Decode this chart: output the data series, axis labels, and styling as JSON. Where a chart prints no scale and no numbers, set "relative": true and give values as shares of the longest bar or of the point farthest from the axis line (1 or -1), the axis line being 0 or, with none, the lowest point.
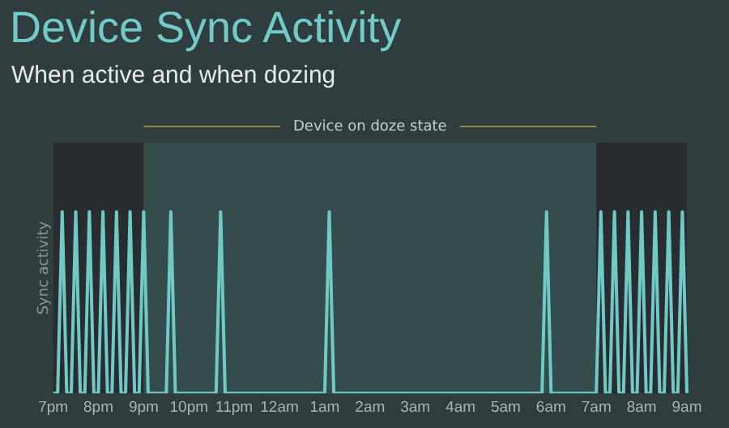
{
  "chart_data": {
    "type": "line",
    "title": "Device Sync Activity",
    "subtitle": "When active and when dozing",
    "ylabel": "Sync activity",
    "relative": true,
    "categories": [
      "7pm",
      null,
      null,
      null,
      null,
      null,
      null,
      null,
      null,
      null,
      "8pm",
      null,
      null,
      null,
      null,
      null,
      null,
      null,
      null,
      null,
      "9pm",
      null,
      null,
      null,
      null,
      null,
      null,
      null,
      null,
      null,
      "10pm",
      null,
      null,
      null,
      null,
      null,
      null,
      null,
      null,
      null,
      "11pm",
      null,
      null,
      null,
      null,
      null,
      null,
      null,
      null,
      null,
      "12am",
      null,
      null,
      null,
      null,
      null,
      null,
      null,
      null,
      null,
      "1am",
      null,
      null,
      null,
      null,
      null,
      null,
      null,
      null,
      null,
      "2am",
      null,
      null,
      null,
      null,
      null,
      null,
      null,
      null,
      null,
      "3am",
      null,
      null,
      null,
      null,
      null,
      null,
      null,
      null,
      null,
      "4am",
      null,
      null,
      null,
      null,
      null,
      null,
      null,
      null,
      null,
      "5am",
      null,
      null,
      null,
      null,
      null,
      null,
      null,
      null,
      null,
      "6am",
      null,
      null,
      null,
      null,
      null,
      null,
      null,
      null,
      null,
      "7am",
      null,
      null,
      null,
      null,
      null,
      null,
      null,
      null,
      null,
      "8am",
      null,
      null,
      null,
      null,
      null,
      null,
      null,
      null,
      null,
      "9am"
    ],
    "series": [
      {
        "color": "#6fcac6",
        "values": [
          0,
          0,
          1,
          0,
          0,
          1,
          0,
          0,
          1,
          0,
          0,
          1,
          0,
          0,
          1,
          0,
          0,
          1,
          0,
          0,
          1,
          0,
          0,
          0,
          0,
          0,
          1,
          0,
          0,
          0,
          0,
          0,
          0,
          0,
          0,
          0,
          0,
          1,
          0,
          0,
          0,
          0,
          0,
          0,
          0,
          0,
          0,
          0,
          0,
          0,
          0,
          0,
          0,
          0,
          0,
          0,
          0,
          0,
          0,
          0,
          0,
          1,
          0,
          0,
          0,
          0,
          0,
          0,
          0,
          0,
          0,
          0,
          0,
          0,
          0,
          0,
          0,
          0,
          0,
          0,
          0,
          0,
          0,
          0,
          0,
          0,
          0,
          0,
          0,
          0,
          0,
          0,
          0,
          0,
          0,
          0,
          0,
          0,
          0,
          0,
          0,
          0,
          0,
          0,
          0,
          0,
          0,
          0,
          0,
          1,
          0,
          0,
          0,
          0,
          0,
          0,
          0,
          0,
          0,
          0,
          0,
          1,
          0,
          0,
          1,
          0,
          0,
          1,
          0,
          0,
          1,
          0,
          0,
          1,
          0,
          0,
          1,
          0,
          0,
          1,
          0
        ]
      }
    ],
    "bands": [
      {
        "axis": "x",
        "from": "7pm",
        "to": "9pm",
        "color": "#2a2d2f"
      },
      {
        "axis": "x",
        "from": "9pm",
        "to": "7am",
        "label": "Device on doze state",
        "color": "#354c4c"
      },
      {
        "axis": "x",
        "from": "7am",
        "to": "9am",
        "color": "#2a2d2f"
      }
    ],
    "grid": false,
    "legend": false,
    "marker": "none",
    "line_style": "solid",
    "tick_labels": "x"
  }
}
